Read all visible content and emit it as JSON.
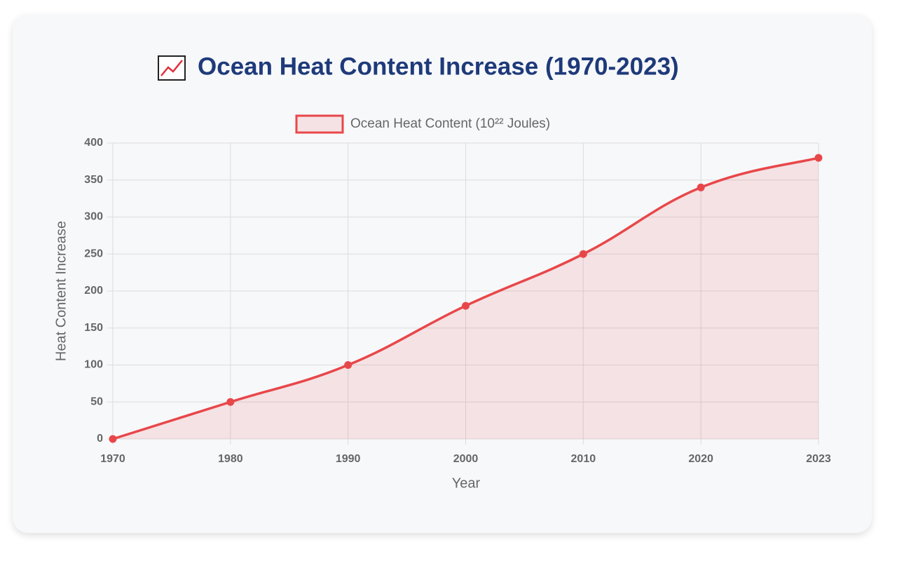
{
  "chart_data": {
    "type": "line",
    "title": "Ocean Heat Content Increase (1970-2023)",
    "categories": [
      "1970",
      "1980",
      "1990",
      "2000",
      "2010",
      "2020",
      "2023"
    ],
    "series": [
      {
        "name": "Ocean Heat Content (10²² Joules)",
        "color": "#e8474a",
        "values": [
          0,
          50,
          100,
          180,
          250,
          340,
          380
        ]
      }
    ],
    "x_label": "Year",
    "y_label": "Heat Content Increase",
    "ylim": [
      0,
      400
    ],
    "yticks": [
      0,
      50,
      100,
      150,
      200,
      250,
      300,
      350,
      400
    ],
    "grid": true,
    "fill": true
  }
}
